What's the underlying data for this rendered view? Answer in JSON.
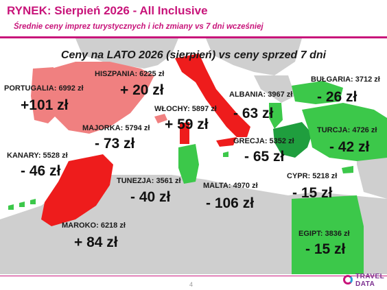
{
  "header": {
    "title": "RYNEK: Sierpień 2026 - All Inclusive",
    "subtitle": "Średnie ceny imprez turystycznych i ich zmiany vs 7 dni wcześniej"
  },
  "map": {
    "title": "Ceny na LATO 2026 (sierpień) vs ceny sprzed 7 dni",
    "colors": {
      "increase": "#ee1c1c",
      "decrease": "#3cc84a",
      "portugal_spain": "#f08080",
      "land": "#cfcfcf",
      "sea": "#ffffff",
      "magenta": "#c8147a"
    },
    "destinations": [
      {
        "id": "portugalia",
        "label": "PORTUGALIA: 6992 zł",
        "delta": "+101 zł"
      },
      {
        "id": "hiszpania",
        "label": "HISZPANIA: 6225 zł",
        "delta": "+ 20 zł"
      },
      {
        "id": "wlochy",
        "label": "WŁOCHY: 5897 zł",
        "delta": "+ 59 zł"
      },
      {
        "id": "majorka",
        "label": "MAJORKA: 5794 zł",
        "delta": "- 73 zł"
      },
      {
        "id": "kanary",
        "label": "KANARY: 5528 zł",
        "delta": "- 46 zł"
      },
      {
        "id": "albania",
        "label": "ALBANIA: 3967 zł",
        "delta": "- 63 zł"
      },
      {
        "id": "bulgaria",
        "label": "BUŁGARIA: 3712 zł",
        "delta": "- 26 zł"
      },
      {
        "id": "turcja",
        "label": "TURCJA: 4726 zł",
        "delta": "- 42 zł"
      },
      {
        "id": "grecja",
        "label": "GRECJA: 5352 zł",
        "delta": "- 65 zł"
      },
      {
        "id": "tunezja",
        "label": "TUNEZJA: 3561 zł",
        "delta": "- 40 zł"
      },
      {
        "id": "malta",
        "label": "MALTA: 4970 zł",
        "delta": "- 106 zł"
      },
      {
        "id": "cypr",
        "label": "CYPR: 5218 zł",
        "delta": "- 15 zł"
      },
      {
        "id": "maroko",
        "label": "MAROKO: 6218 zł",
        "delta": "+ 84 zł"
      },
      {
        "id": "egipt",
        "label": "EGIPT: 3836 zł",
        "delta": "- 15 zł"
      }
    ]
  },
  "footer": {
    "page_number": "4",
    "logo_line1": "TRAVEL",
    "logo_line2": "DATA"
  }
}
